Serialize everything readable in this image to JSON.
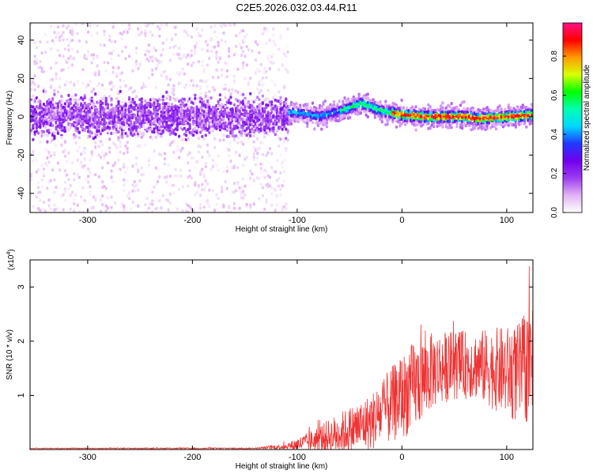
{
  "figure": {
    "title": "C2E5.2026.032.03.44.R11"
  },
  "chart_data": [
    {
      "type": "heatmap",
      "title": "C2E5.2026.032.03.44.R11",
      "xlabel": "Height of straight line (km)",
      "ylabel": "Frequency (Hz)",
      "xlim": [
        -355,
        125
      ],
      "ylim": [
        -50,
        49
      ],
      "x_ticks": [
        -300,
        -200,
        -100,
        0,
        100
      ],
      "y_ticks": [
        -40,
        -20,
        0,
        20,
        40
      ],
      "colorbar": {
        "label": "Normalized spectral amplitude",
        "range": [
          0,
          0.97
        ],
        "ticks": [
          0,
          0.2,
          0.4,
          0.6,
          0.8
        ],
        "colormap": [
          "#ffffff",
          "#e2b2f4",
          "#9b3df0",
          "#7000ee",
          "#2038ff",
          "#00d8ff",
          "#00ffb0",
          "#00ff00",
          "#d8ff00",
          "#ff9a00",
          "#ff0000",
          "#ff1088"
        ]
      },
      "description_points": {
        "noise_region_x": [
          -355,
          -110
        ],
        "signal_trace": [
          {
            "x": -130,
            "y": 3
          },
          {
            "x": -100,
            "y": 2
          },
          {
            "x": -80,
            "y": 0
          },
          {
            "x": -60,
            "y": 3
          },
          {
            "x": -40,
            "y": 7
          },
          {
            "x": -30,
            "y": 5
          },
          {
            "x": -20,
            "y": 3
          },
          {
            "x": 0,
            "y": 1
          },
          {
            "x": 20,
            "y": 0
          },
          {
            "x": 40,
            "y": 0
          },
          {
            "x": 60,
            "y": 0
          },
          {
            "x": 70,
            "y": -1
          },
          {
            "x": 100,
            "y": 0
          },
          {
            "x": 125,
            "y": 1
          }
        ]
      }
    },
    {
      "type": "line",
      "xlabel": "Height of straight line (km)",
      "ylabel": "SNR (10 * v/v)",
      "y_multiplier_label": "(x10",
      "y_multiplier_exp": "4",
      "multiplier_close": ")",
      "xlim": [
        -355,
        125
      ],
      "ylim": [
        0,
        3.5
      ],
      "x_ticks": [
        -300,
        -200,
        -100,
        0,
        100
      ],
      "y_ticks": [
        1,
        2,
        3
      ],
      "series": [
        {
          "name": "SNR",
          "color": "#ee3333",
          "envelope": [
            {
              "x": -355,
              "base": 0.02,
              "amp": 0.01
            },
            {
              "x": -140,
              "base": 0.02,
              "amp": 0.02
            },
            {
              "x": -110,
              "base": 0.05,
              "amp": 0.08
            },
            {
              "x": -90,
              "base": 0.12,
              "amp": 0.25
            },
            {
              "x": -60,
              "base": 0.25,
              "amp": 0.55
            },
            {
              "x": -30,
              "base": 0.45,
              "amp": 0.75
            },
            {
              "x": -10,
              "base": 0.75,
              "amp": 1.0
            },
            {
              "x": 10,
              "base": 1.05,
              "amp": 1.2
            },
            {
              "x": 30,
              "base": 1.4,
              "amp": 1.0
            },
            {
              "x": 50,
              "base": 1.5,
              "amp": 0.9
            },
            {
              "x": 70,
              "base": 1.5,
              "amp": 0.9
            },
            {
              "x": 90,
              "base": 1.4,
              "amp": 1.1
            },
            {
              "x": 110,
              "base": 1.3,
              "amp": 1.3
            },
            {
              "x": 125,
              "base": 1.5,
              "amp": 1.6
            }
          ]
        }
      ]
    }
  ],
  "colors": {
    "line": "#ee3333",
    "axis": "#000000"
  }
}
